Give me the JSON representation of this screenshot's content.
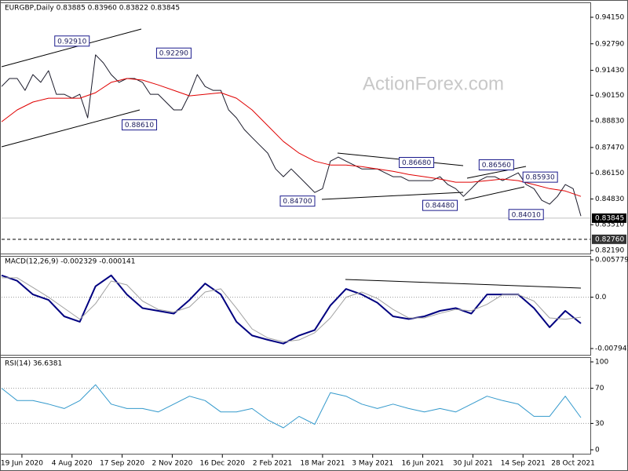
{
  "chart_data": [
    {
      "type": "line",
      "title": "EURGBP,Daily  0.83885 0.83960 0.83822 0.83845",
      "watermark": "ActionForex.com",
      "xlim": [
        0,
        376
      ],
      "ylim": [
        0.82029,
        0.94875
      ],
      "yticks": [
        {
          "value": 0.9415,
          "label": "0.94150"
        },
        {
          "value": 0.9279,
          "label": "0.92790"
        },
        {
          "value": 0.9143,
          "label": "0.91430"
        },
        {
          "value": 0.9015,
          "label": "0.90150"
        },
        {
          "value": 0.8883,
          "label": "0.88830"
        },
        {
          "value": 0.8747,
          "label": "0.87470"
        },
        {
          "value": 0.8615,
          "label": "0.86150"
        },
        {
          "value": 0.8483,
          "label": "0.84830"
        },
        {
          "value": 0.8351,
          "label": "0.83510"
        },
        {
          "value": 0.8219,
          "label": "0.82190"
        }
      ],
      "series": [
        {
          "color": "#1a1a2a",
          "x": [
            0,
            5,
            10,
            15,
            20,
            25,
            30,
            35,
            40,
            45,
            50,
            55,
            60,
            65,
            70,
            75,
            80,
            85,
            90,
            95,
            100,
            105,
            110,
            115,
            120,
            125,
            130,
            135,
            140,
            145,
            150,
            155,
            160,
            165,
            170,
            175,
            180,
            185,
            190,
            195,
            200,
            205,
            210,
            215,
            220,
            225,
            230,
            235,
            240,
            245,
            250,
            255,
            260,
            265,
            270,
            275,
            280,
            285,
            290,
            295,
            300,
            305,
            310,
            315,
            320,
            325,
            330,
            335,
            340,
            345,
            350,
            355,
            360,
            365,
            370
          ],
          "values": [
            0.906,
            0.9101,
            0.9101,
            0.904,
            0.9121,
            0.9081,
            0.9141,
            0.902,
            0.902,
            0.9,
            0.902,
            0.8899,
            0.9222,
            0.9181,
            0.9121,
            0.9081,
            0.9101,
            0.9101,
            0.9081,
            0.902,
            0.902,
            0.898,
            0.894,
            0.894,
            0.902,
            0.9121,
            0.906,
            0.904,
            0.904,
            0.894,
            0.8899,
            0.8839,
            0.8798,
            0.8758,
            0.8718,
            0.8637,
            0.8597,
            0.8637,
            0.8597,
            0.8557,
            0.8516,
            0.8536,
            0.8677,
            0.8698,
            0.8677,
            0.8657,
            0.8637,
            0.8637,
            0.8637,
            0.8617,
            0.8597,
            0.8597,
            0.8577,
            0.8577,
            0.8577,
            0.8577,
            0.8597,
            0.8557,
            0.8536,
            0.8496,
            0.8536,
            0.8577,
            0.8597,
            0.8597,
            0.8577,
            0.8597,
            0.8617,
            0.8557,
            0.8536,
            0.8476,
            0.8456,
            0.8496,
            0.8557,
            0.8536,
            0.8395
          ]
        },
        {
          "color": "#e00000",
          "x": [
            0,
            10,
            20,
            30,
            40,
            50,
            60,
            70,
            80,
            90,
            100,
            110,
            120,
            130,
            140,
            150,
            160,
            170,
            180,
            190,
            200,
            210,
            220,
            230,
            240,
            250,
            260,
            270,
            280,
            290,
            300,
            310,
            320,
            330,
            340,
            350,
            360,
            370
          ],
          "values": [
            0.8879,
            0.894,
            0.898,
            0.9,
            0.9,
            0.9,
            0.9028,
            0.9081,
            0.9101,
            0.9093,
            0.9068,
            0.904,
            0.9012,
            0.902,
            0.9028,
            0.9,
            0.894,
            0.8859,
            0.8778,
            0.8718,
            0.8677,
            0.8657,
            0.8657,
            0.8649,
            0.8637,
            0.8625,
            0.8609,
            0.8597,
            0.8585,
            0.8569,
            0.8569,
            0.8577,
            0.8585,
            0.8577,
            0.8557,
            0.8536,
            0.8524,
            0.8496
          ]
        }
      ],
      "annotations": [
        {
          "x": 45,
          "value": 0.9291,
          "label": "0.92910"
        },
        {
          "x": 110,
          "value": 0.9229,
          "label": "0.92290"
        },
        {
          "x": 88,
          "value": 0.8861,
          "label": "0.88610"
        },
        {
          "x": 189,
          "value": 0.847,
          "label": "0.84700"
        },
        {
          "x": 265,
          "value": 0.8668,
          "label": "0.86680"
        },
        {
          "x": 280,
          "value": 0.8448,
          "label": "0.84480"
        },
        {
          "x": 316,
          "value": 0.8656,
          "label": "0.86560"
        },
        {
          "x": 344,
          "value": 0.8593,
          "label": "0.85930"
        },
        {
          "x": 335,
          "value": 0.8401,
          "label": "0.84010"
        }
      ],
      "price_lines": [
        {
          "value": 0.83845,
          "label": "0.83845",
          "color": "#c0c0c0",
          "box": "#000000"
        },
        {
          "value": 0.8276,
          "label": "0.82760",
          "color": "#000000",
          "box": "#333333"
        }
      ]
    },
    {
      "type": "line",
      "title": "MACD(12,26,9) -0.002329 -0.000141",
      "xlim": [
        0,
        376
      ],
      "ylim": [
        -0.007941,
        0.005779
      ],
      "yticks": [
        0.005779,
        {
          "value": 0,
          "label": "0.0"
        },
        -0.007941
      ],
      "grid": "dotted",
      "series": [
        {
          "color": "#000080",
          "width": 2,
          "x": [
            0,
            10,
            20,
            30,
            40,
            50,
            60,
            70,
            80,
            90,
            100,
            110,
            120,
            130,
            140,
            150,
            160,
            170,
            180,
            190,
            200,
            210,
            220,
            230,
            240,
            250,
            260,
            270,
            280,
            290,
            300,
            310,
            320,
            330,
            340,
            350,
            360,
            370
          ],
          "values": [
            0.00338,
            0.00254,
            0.00042,
            -0.00042,
            -0.00296,
            -0.0038,
            0.00169,
            0.00338,
            0.00042,
            -0.00169,
            -0.00211,
            -0.00254,
            -0.00042,
            0.00211,
            0.00042,
            -0.0038,
            -0.00592,
            -0.00659,
            -0.00718,
            -0.00592,
            -0.00507,
            -0.00127,
            0.00127,
            0.00042,
            -0.00085,
            -0.00296,
            -0.00338,
            -0.00296,
            -0.00211,
            -0.00169,
            -0.00254,
            0.00042,
            0.00042,
            0.00042,
            -0.00169,
            -0.00465,
            -0.00211,
            -0.00406
          ]
        },
        {
          "color": "#a0a0a0",
          "width": 1,
          "x": [
            0,
            10,
            20,
            30,
            40,
            50,
            60,
            70,
            80,
            90,
            100,
            110,
            120,
            130,
            140,
            150,
            160,
            170,
            180,
            190,
            200,
            210,
            220,
            230,
            240,
            250,
            260,
            270,
            280,
            290,
            300,
            310,
            320,
            330,
            340,
            350,
            360,
            370
          ],
          "values": [
            0.003,
            0.003,
            0.0015,
            0,
            -0.0017,
            -0.0034,
            -0.001,
            0.0025,
            0.0019,
            -0.0006,
            -0.0019,
            -0.0023,
            -0.0015,
            0.0008,
            0.0013,
            -0.0017,
            -0.0049,
            -0.0063,
            -0.0069,
            -0.0066,
            -0.0055,
            -0.0032,
            0,
            0.0008,
            -0.0002,
            -0.0019,
            -0.0032,
            -0.0032,
            -0.0025,
            -0.0019,
            -0.0021,
            -0.0011,
            0.0004,
            0.0004,
            -0.0006,
            -0.0032,
            -0.0034,
            -0.0031
          ]
        }
      ]
    },
    {
      "type": "line",
      "title": "RSI(14) 36.6381",
      "xlim": [
        0,
        376
      ],
      "ylim": [
        0,
        100
      ],
      "yticks": [
        100,
        70,
        30,
        0
      ],
      "grid": "dotted",
      "series": [
        {
          "color": "#3399cc",
          "width": 1,
          "x": [
            0,
            10,
            20,
            30,
            40,
            50,
            60,
            70,
            80,
            90,
            100,
            110,
            120,
            130,
            140,
            150,
            160,
            170,
            180,
            190,
            200,
            210,
            220,
            230,
            240,
            250,
            260,
            270,
            280,
            290,
            300,
            310,
            320,
            330,
            340,
            350,
            360,
            370
          ],
          "values": [
            70,
            56,
            56,
            52,
            47,
            56,
            74,
            52,
            47,
            47,
            43,
            52,
            61,
            56,
            43,
            43,
            47,
            34,
            25,
            38,
            29,
            65,
            61,
            52,
            47,
            52,
            47,
            43,
            47,
            43,
            52,
            61,
            56,
            52,
            38,
            38,
            61,
            36.6
          ]
        }
      ],
      "xticks": [
        {
          "value": 13,
          "label": "19 Jun 2020"
        },
        {
          "value": 45,
          "label": "4 Aug 2020"
        },
        {
          "value": 77,
          "label": "17 Sep 2020"
        },
        {
          "value": 109,
          "label": "2 Nov 2020"
        },
        {
          "value": 141,
          "label": "16 Dec 2020"
        },
        {
          "value": 173,
          "label": "2 Feb 2021"
        },
        {
          "value": 205,
          "label": "18 Mar 2021"
        },
        {
          "value": 237,
          "label": "3 May 2021"
        },
        {
          "value": 269,
          "label": "16 Jun 2021"
        },
        {
          "value": 301,
          "label": "30 Jul 2021"
        },
        {
          "value": 333,
          "label": "14 Sep 2021"
        },
        {
          "value": 365,
          "label": "28 Oct 2021"
        }
      ]
    }
  ]
}
